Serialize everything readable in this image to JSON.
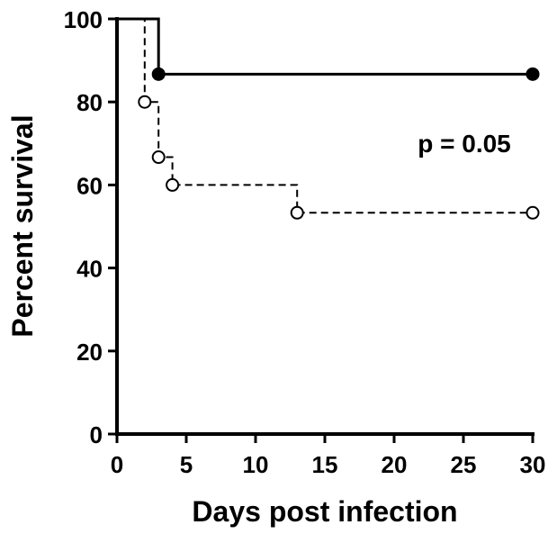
{
  "chart_data": {
    "type": "line",
    "subtype": "kaplan-meier-survival",
    "title": "",
    "xlabel": "Days post infection",
    "ylabel": "Percent survival",
    "xlim": [
      0,
      30
    ],
    "ylim": [
      0,
      100
    ],
    "xticks": [
      0,
      5,
      10,
      15,
      20,
      25,
      30
    ],
    "yticks": [
      0,
      20,
      40,
      60,
      80,
      100
    ],
    "grid": false,
    "legend": "none",
    "annotation": {
      "text": "p = 0.05"
    },
    "series": [
      {
        "line_style": "solid",
        "marker": "filled-circle",
        "color": "#000000",
        "steps": [
          {
            "x": 0,
            "y": 100
          },
          {
            "x": 3,
            "y": 86.7
          },
          {
            "x": 30,
            "y": 86.7
          }
        ],
        "markers": [
          {
            "x": 3,
            "y": 86.7
          },
          {
            "x": 30,
            "y": 86.7
          }
        ]
      },
      {
        "line_style": "dashed",
        "marker": "open-circle",
        "color": "#000000",
        "steps": [
          {
            "x": 0,
            "y": 100
          },
          {
            "x": 2,
            "y": 80
          },
          {
            "x": 3,
            "y": 66.7
          },
          {
            "x": 4,
            "y": 60
          },
          {
            "x": 13,
            "y": 53.3
          },
          {
            "x": 30,
            "y": 53.3
          }
        ],
        "markers": [
          {
            "x": 2,
            "y": 80
          },
          {
            "x": 3,
            "y": 66.7
          },
          {
            "x": 4,
            "y": 60
          },
          {
            "x": 13,
            "y": 53.3
          },
          {
            "x": 30,
            "y": 53.3
          }
        ]
      }
    ]
  }
}
